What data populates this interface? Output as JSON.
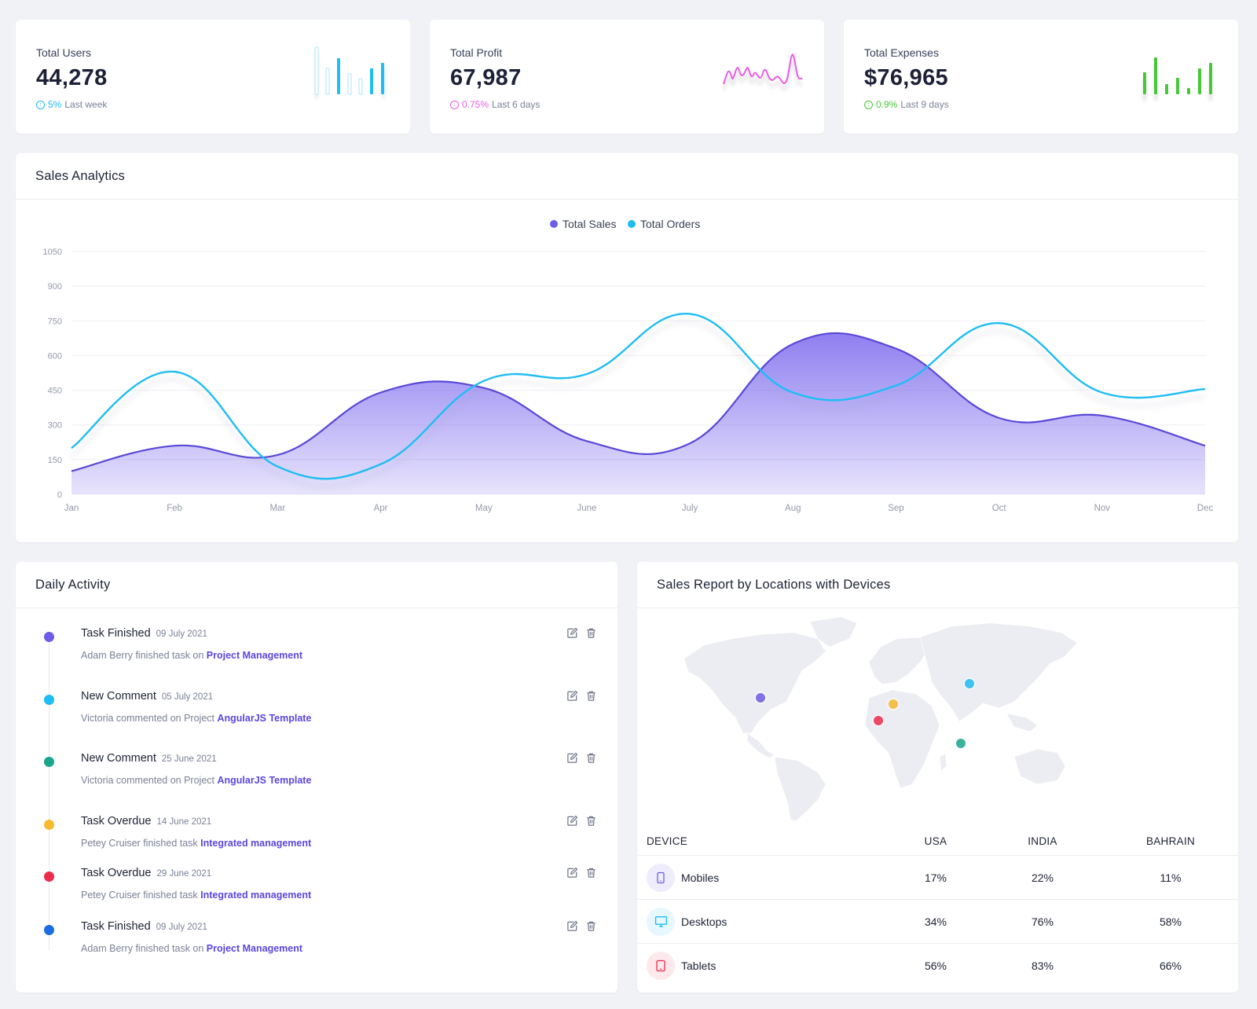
{
  "stats": [
    {
      "label": "Total Users",
      "value": "44,278",
      "trend_value": "5%",
      "trend_text": "Last week",
      "trend_dir": "up",
      "color": "#1ebdf4"
    },
    {
      "label": "Total Profit",
      "value": "67,987",
      "trend_value": "0.75%",
      "trend_text": "Last 6 days",
      "trend_dir": "down",
      "color": "#e95de4"
    },
    {
      "label": "Total Expenses",
      "value": "$76,965",
      "trend_value": "0.9%",
      "trend_text": "Last 9 days",
      "trend_dir": "up",
      "color": "#47c83a"
    }
  ],
  "sales_analytics": {
    "title": "Sales Analytics"
  },
  "chart_data": {
    "type": "area",
    "title": "",
    "xlabel": "",
    "ylabel": "",
    "categories": [
      "Jan",
      "Feb",
      "Mar",
      "Apr",
      "May",
      "June",
      "July",
      "Aug",
      "Sep",
      "Oct",
      "Nov",
      "Dec"
    ],
    "yticks": [
      0,
      150,
      300,
      450,
      600,
      750,
      900,
      1050
    ],
    "ylim": [
      0,
      1050
    ],
    "grid": true,
    "legend_position": "top-center",
    "series": [
      {
        "name": "Total Sales",
        "type": "area",
        "color": "#6c5ce7",
        "values": [
          100,
          210,
          170,
          440,
          460,
          230,
          220,
          650,
          630,
          330,
          340,
          210
        ]
      },
      {
        "name": "Total Orders",
        "type": "line",
        "color": "#1ebdf4",
        "values": [
          200,
          530,
          120,
          130,
          490,
          520,
          780,
          440,
          470,
          740,
          440,
          455
        ]
      }
    ]
  },
  "daily_activity": {
    "title": "Daily Activity",
    "items": [
      {
        "title": "Task Finished",
        "date": "09 July 2021",
        "desc": "Adam Berry finished task on ",
        "link": "Project Management",
        "color": "#6c5ce7"
      },
      {
        "title": "New Comment",
        "date": "05 July 2021",
        "desc": "Victoria commented on Project ",
        "link": "AngularJS Template",
        "color": "#1ebdf4"
      },
      {
        "title": "New Comment",
        "date": "25 June 2021",
        "desc": "Victoria commented on Project ",
        "link": "AngularJS Template",
        "color": "#1aa58c"
      },
      {
        "title": "Task Overdue",
        "date": "14 June 2021",
        "desc": "Petey Cruiser finished task ",
        "link": "Integrated management",
        "color": "#f6b92f"
      },
      {
        "title": "Task Overdue",
        "date": "29 June 2021",
        "desc": "Petey Cruiser finished task ",
        "link": "Integrated management",
        "color": "#ed2b4b"
      },
      {
        "title": "Task Finished",
        "date": "09 July 2021",
        "desc": "Adam Berry finished task on ",
        "link": "Project Management",
        "color": "#1a6de0"
      }
    ]
  },
  "sales_report": {
    "title": "Sales Report by Locations with Devices",
    "columns": [
      "DEVICE",
      "USA",
      "INDIA",
      "BAHRAIN"
    ],
    "rows": [
      {
        "device": "Mobiles",
        "icon": "mobile-icon",
        "usa": "17%",
        "india": "22%",
        "bahrain": "11%",
        "color": "#6c5ce7",
        "bg": "#efedfd"
      },
      {
        "device": "Desktops",
        "icon": "desktop-icon",
        "usa": "34%",
        "india": "76%",
        "bahrain": "58%",
        "color": "#1ebdf4",
        "bg": "#e6f7fd"
      },
      {
        "device": "Tablets",
        "icon": "tablet-icon",
        "usa": "56%",
        "india": "83%",
        "bahrain": "66%",
        "color": "#ed2b4b",
        "bg": "#fde9ec"
      }
    ],
    "map_markers": [
      {
        "name": "usa-marker",
        "color": "#6c5ce7"
      },
      {
        "name": "europe-marker",
        "color": "#f6b92f"
      },
      {
        "name": "russia-marker",
        "color": "#1ebdf4"
      },
      {
        "name": "africa-marker",
        "color": "#ed2b4b"
      },
      {
        "name": "india-marker",
        "color": "#1aa58c"
      }
    ]
  }
}
